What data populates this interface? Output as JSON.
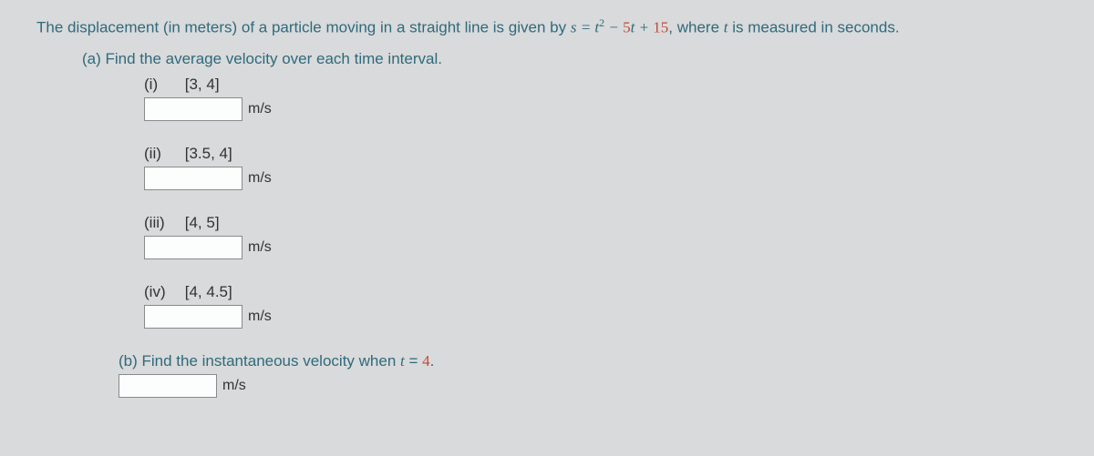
{
  "colors": {
    "background": "#d9dadb",
    "text_primary": "#2f6a7c",
    "text_black": "#333333",
    "number_accent": "#c04a3a",
    "input_border": "#8a8a8a",
    "input_bg": "#fcfdfd"
  },
  "typography": {
    "body_fontsize": 17,
    "unit_fontsize": 16,
    "font_family": "Arial"
  },
  "prompt": {
    "pre": "The displacement (in meters) of a particle moving in a straight line is given by ",
    "eq_lhs": "s = t",
    "eq_exp": "2",
    "eq_mid": " − ",
    "eq_coef": "5",
    "eq_rhs_var": "t + ",
    "eq_const": "15",
    "post": ", where ",
    "tvar": "t",
    "post2": " is measured in seconds."
  },
  "partA": {
    "label": "(a) Find the average velocity over each time interval.",
    "unit": "m/s",
    "items": [
      {
        "roman": "(i)",
        "interval": "[3, 4]",
        "value": ""
      },
      {
        "roman": "(ii)",
        "interval": "[3.5, 4]",
        "value": ""
      },
      {
        "roman": "(iii)",
        "interval": "[4, 5]",
        "value": ""
      },
      {
        "roman": "(iv)",
        "interval": "[4, 4.5]",
        "value": ""
      }
    ]
  },
  "partB": {
    "pre": "(b) Find the instantaneous velocity when ",
    "tvar": "t",
    "mid": " = ",
    "val": "4",
    "post": ".",
    "unit": "m/s",
    "value": ""
  }
}
